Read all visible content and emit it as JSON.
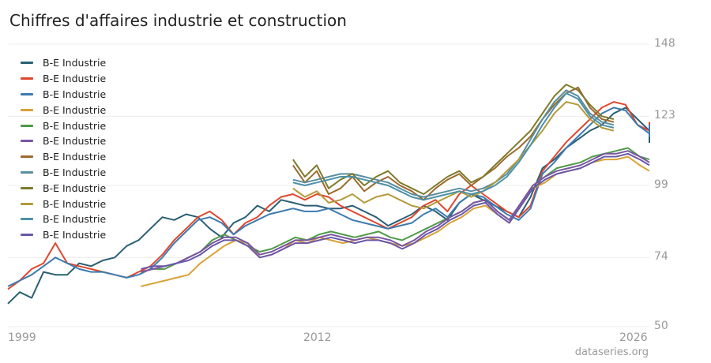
{
  "title": "Chiffres d'affaires industrie et construction",
  "source": "dataseries.org",
  "chart_data": {
    "type": "line",
    "title": "Chiffres d'affaires industrie et construction",
    "xlabel": "",
    "ylabel": "",
    "y_ticks": [
      "148",
      "123",
      "99",
      "74",
      "50"
    ],
    "ylim": [
      50,
      148
    ],
    "x_ticks": [
      "1999",
      "2012",
      "2026"
    ],
    "xlim": [
      1999,
      2026
    ],
    "grid": true,
    "legend_position": "top-left",
    "series": [
      {
        "name": "B-E Industrie",
        "color": "#2a5f73",
        "start": 1999.0,
        "y": [
          58,
          62,
          60,
          69,
          68,
          68,
          72,
          71,
          73,
          74,
          78,
          80,
          84,
          88,
          87,
          89,
          88,
          84,
          81,
          86,
          88,
          92,
          90,
          94,
          93,
          92,
          92,
          91,
          91,
          92,
          90,
          88,
          85,
          87,
          89,
          92,
          90,
          87,
          93,
          96,
          94,
          92,
          90,
          88,
          95,
          105,
          108,
          112,
          115,
          118,
          120,
          124,
          126,
          122,
          118,
          115,
          114,
          118,
          120
        ]
      },
      {
        "name": "B-E Industrie",
        "color": "#e0472e",
        "start": 1999.0,
        "y": [
          63,
          66,
          70,
          72,
          79,
          72,
          71,
          70,
          69,
          68,
          67,
          69,
          71,
          75,
          80,
          84,
          88,
          90,
          87,
          82,
          86,
          88,
          92,
          95,
          96,
          94,
          96,
          95,
          92,
          90,
          88,
          86,
          84,
          86,
          88,
          92,
          94,
          90,
          96,
          99,
          96,
          93,
          90,
          88,
          92,
          104,
          109,
          114,
          118,
          122,
          126,
          128,
          127,
          120,
          118,
          117,
          119,
          120,
          121
        ]
      },
      {
        "name": "B-E Industrie",
        "color": "#3d7bb0",
        "start": 1999.0,
        "y": [
          64,
          66,
          68,
          71,
          74,
          72,
          70,
          69,
          69,
          68,
          67,
          68,
          70,
          74,
          79,
          83,
          87,
          88,
          86,
          82,
          85,
          87,
          89,
          90,
          91,
          90,
          90,
          91,
          89,
          87,
          86,
          85,
          84,
          85,
          86,
          89,
          91,
          88,
          93,
          96,
          95,
          92,
          89,
          87,
          91,
          103,
          107,
          112,
          116,
          120,
          124,
          126,
          125,
          120,
          117,
          116,
          118,
          119,
          120
        ]
      },
      {
        "name": "B-E Industrie",
        "color": "#d9a235",
        "start": 2004.6,
        "y": [
          64,
          65,
          66,
          67,
          68,
          72,
          75,
          78,
          80,
          79,
          74,
          75,
          77,
          80,
          79,
          81,
          80,
          79,
          80,
          81,
          80,
          79,
          78,
          79,
          81,
          83,
          86,
          88,
          91,
          92,
          89,
          86,
          92,
          98,
          100,
          103,
          104,
          105,
          107,
          108,
          108,
          109,
          106,
          104
        ]
      },
      {
        "name": "B-E Industrie",
        "color": "#4e9a48",
        "start": 2004.6,
        "y": [
          69,
          70,
          70,
          72,
          74,
          76,
          80,
          82,
          80,
          78,
          76,
          77,
          79,
          81,
          80,
          82,
          83,
          82,
          81,
          82,
          83,
          81,
          80,
          82,
          84,
          86,
          88,
          90,
          93,
          94,
          90,
          87,
          93,
          99,
          102,
          105,
          106,
          107,
          109,
          110,
          111,
          112,
          109,
          108
        ]
      },
      {
        "name": "B-E Industrie",
        "color": "#7a55a3",
        "start": 2004.6,
        "y": [
          69,
          70,
          71,
          72,
          74,
          76,
          79,
          81,
          81,
          79,
          75,
          76,
          78,
          80,
          80,
          81,
          82,
          81,
          80,
          81,
          81,
          80,
          78,
          80,
          83,
          85,
          88,
          90,
          93,
          94,
          90,
          87,
          93,
          99,
          102,
          104,
          105,
          106,
          108,
          110,
          110,
          111,
          109,
          107
        ]
      },
      {
        "name": "B-E Industrie",
        "color": "#9c6a2c",
        "start": 2011.0,
        "y": [
          106,
          100,
          104,
          96,
          98,
          102,
          97,
          100,
          102,
          99,
          97,
          94,
          98,
          101,
          103,
          99,
          102,
          105,
          109,
          112,
          116,
          122,
          127,
          131,
          133,
          126,
          122,
          121
        ]
      },
      {
        "name": "B-E Industrie",
        "color": "#5a8ea1",
        "start": 2011.0,
        "y": [
          101,
          100,
          101,
          102,
          103,
          103,
          102,
          101,
          100,
          98,
          96,
          95,
          96,
          97,
          98,
          97,
          98,
          100,
          103,
          108,
          115,
          122,
          128,
          132,
          130,
          124,
          121,
          120
        ]
      },
      {
        "name": "B-E Industrie",
        "color": "#7e7a2a",
        "start": 2011.0,
        "y": [
          108,
          102,
          106,
          98,
          101,
          103,
          99,
          102,
          104,
          100,
          98,
          96,
          99,
          102,
          104,
          100,
          102,
          106,
          110,
          114,
          118,
          124,
          130,
          134,
          132,
          127,
          123,
          122
        ]
      },
      {
        "name": "B-E Industrie",
        "color": "#b39a3a",
        "start": 2011.0,
        "y": [
          98,
          95,
          97,
          93,
          94,
          96,
          93,
          95,
          96,
          94,
          92,
          91,
          93,
          95,
          97,
          95,
          97,
          100,
          104,
          108,
          113,
          118,
          124,
          128,
          127,
          122,
          119,
          118
        ]
      },
      {
        "name": "B-E Industrie",
        "color": "#4c91a8",
        "start": 2011.0,
        "y": [
          100,
          99,
          100,
          101,
          102,
          102,
          101,
          100,
          99,
          97,
          95,
          94,
          95,
          96,
          97,
          96,
          97,
          99,
          102,
          107,
          113,
          120,
          126,
          131,
          129,
          123,
          120,
          119
        ]
      },
      {
        "name": "B-E Industrie",
        "color": "#6a58a8",
        "start": 2004.6,
        "y": [
          70,
          71,
          71,
          72,
          73,
          75,
          78,
          80,
          80,
          78,
          74,
          75,
          77,
          79,
          79,
          80,
          81,
          80,
          79,
          80,
          80,
          79,
          77,
          79,
          82,
          84,
          87,
          89,
          92,
          93,
          89,
          86,
          92,
          98,
          101,
          103,
          104,
          105,
          107,
          109,
          109,
          110,
          108,
          106
        ]
      }
    ]
  }
}
